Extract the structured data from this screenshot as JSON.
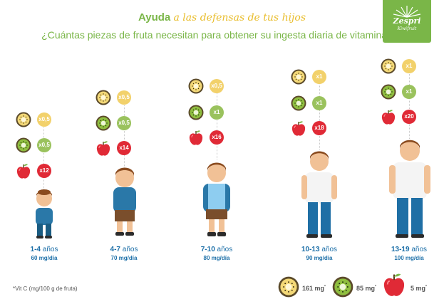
{
  "header": {
    "title_plain": "Ayuda",
    "title_script": "a las defensas de tus hijos",
    "subtitle": "¿Cuántas piezas de fruta necesitan para obtener su ingesta diaria de vitamina C?"
  },
  "logo": {
    "brand": "Zespri",
    "sub": "Kiwifruit"
  },
  "groups": [
    {
      "age": "1-4",
      "unit": "años",
      "dose": "60 mg/día",
      "gold": "x0,5",
      "green": "x0,5",
      "apple": "x12"
    },
    {
      "age": "4-7",
      "unit": "años",
      "dose": "70 mg/día",
      "gold": "x0,5",
      "green": "x0,5",
      "apple": "x14"
    },
    {
      "age": "7-10",
      "unit": "años",
      "dose": "80 mg/día",
      "gold": "x0,5",
      "green": "x1",
      "apple": "x16"
    },
    {
      "age": "10-13",
      "unit": "años",
      "dose": "90 mg/día",
      "gold": "x1",
      "green": "x1",
      "apple": "x18"
    },
    {
      "age": "13-19",
      "unit": "años",
      "dose": "100 mg/día",
      "gold": "x1",
      "green": "x1",
      "apple": "x20"
    }
  ],
  "legend": {
    "footnote": "*Vit C (mg/100 g de fruta)",
    "gold_value": "161 mg",
    "green_value": "85 mg",
    "apple_value": "5 mg",
    "mark": "*"
  },
  "colors": {
    "green": "#7ab648",
    "gold": "#f2d16b",
    "kiwi_green": "#9ac25d",
    "apple_red": "#e02a36",
    "label_blue": "#1c6fa8"
  }
}
